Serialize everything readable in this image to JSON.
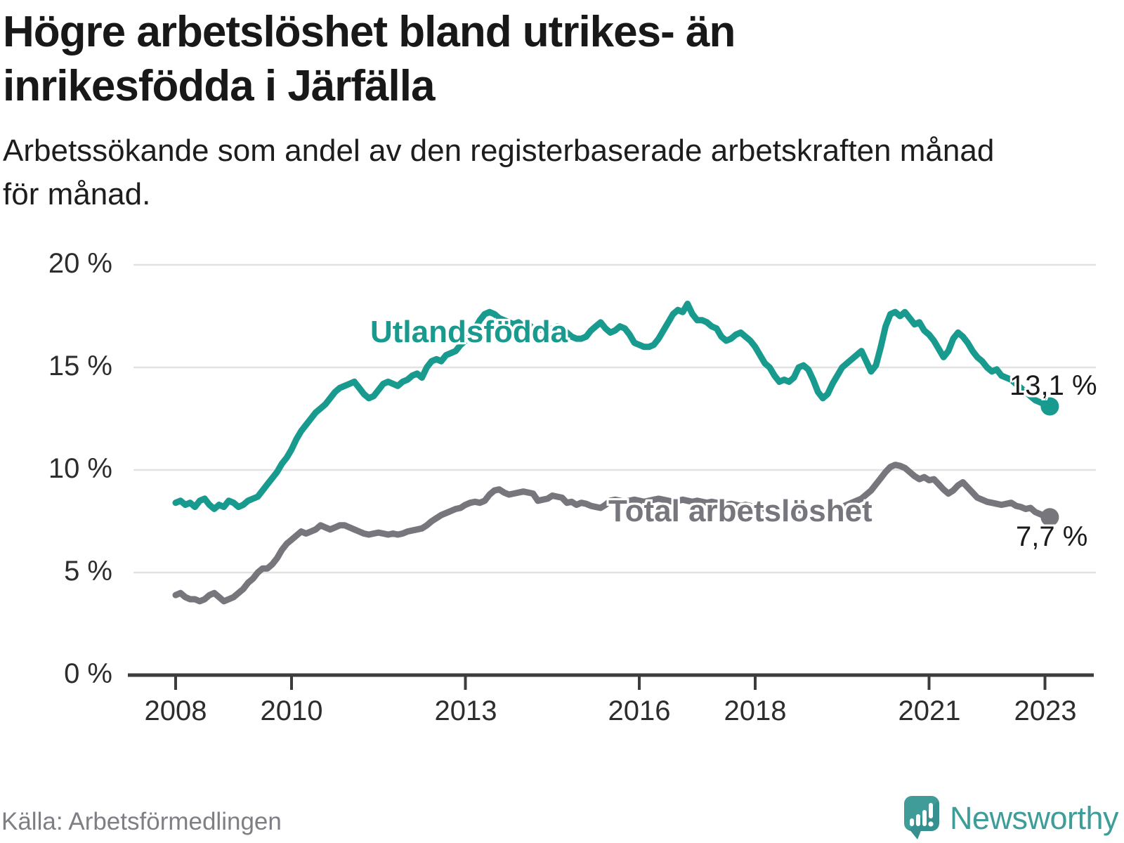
{
  "header": {
    "title_line1": "Högre arbetslöshet bland utrikes- än",
    "title_line2": "inrikesfödda i Järfälla",
    "subtitle_line1": "Arbetssökande som andel av den registerbaserade arbetskraften månad",
    "subtitle_line2": "för månad."
  },
  "footer": {
    "source": "Källa: Arbetsförmedlingen",
    "brand": "Newsworthy",
    "brand_color": "#3f9d99"
  },
  "chart_data": {
    "type": "line",
    "title": "Högre arbetslöshet bland utrikes- än inrikesfödda i Järfälla",
    "subtitle": "Arbetssökande som andel av den registerbaserade arbetskraften månad för månad.",
    "unit": "%",
    "grid": "horizontal",
    "legend_position": "inline-labels",
    "axis_color": "#3c3c3c",
    "gridline_color": "#e2e2e2",
    "y_axis": {
      "range": [
        0,
        20
      ],
      "ticks": [
        {
          "value": 20,
          "label": "20 %"
        },
        {
          "value": 15,
          "label": "15 %"
        },
        {
          "value": 10,
          "label": "10 %"
        },
        {
          "value": 5,
          "label": "5 %"
        },
        {
          "value": 0,
          "label": "0 %"
        }
      ]
    },
    "x_axis": {
      "range_years": [
        2008.0,
        2023.17
      ],
      "ticks": [
        {
          "value": 2008,
          "label": "2008"
        },
        {
          "value": 2010,
          "label": "2010"
        },
        {
          "value": 2013,
          "label": "2013"
        },
        {
          "value": 2016,
          "label": "2016"
        },
        {
          "value": 2018,
          "label": "2018"
        },
        {
          "value": 2021,
          "label": "2021"
        },
        {
          "value": 2023,
          "label": "2023"
        }
      ]
    },
    "series": [
      {
        "id": "utlandsfodda",
        "name": "Utlandsfödda",
        "color": "#189b8e",
        "start_year": 2008,
        "step_months": 1,
        "end_value": 13.1,
        "end_label": "13,1 %",
        "values": [
          8.4,
          8.5,
          8.3,
          8.4,
          8.2,
          8.5,
          8.6,
          8.3,
          8.1,
          8.3,
          8.2,
          8.5,
          8.4,
          8.2,
          8.3,
          8.5,
          8.6,
          8.7,
          9.0,
          9.3,
          9.6,
          9.9,
          10.3,
          10.6,
          11.0,
          11.5,
          11.9,
          12.2,
          12.5,
          12.8,
          13.0,
          13.2,
          13.5,
          13.8,
          14.0,
          14.1,
          14.2,
          14.3,
          14.0,
          13.7,
          13.5,
          13.6,
          13.9,
          14.2,
          14.3,
          14.2,
          14.1,
          14.3,
          14.4,
          14.6,
          14.7,
          14.5,
          15.0,
          15.3,
          15.4,
          15.3,
          15.6,
          15.7,
          15.8,
          16.1,
          16.3,
          16.6,
          16.9,
          17.3,
          17.6,
          17.7,
          17.6,
          17.4,
          17.3,
          17.2,
          17.1,
          17.2,
          17.0,
          17.1,
          16.9,
          16.8,
          16.9,
          16.8,
          16.9,
          17.0,
          16.9,
          16.7,
          16.5,
          16.4,
          16.4,
          16.5,
          16.8,
          17.0,
          17.2,
          16.9,
          16.7,
          16.8,
          17.0,
          16.9,
          16.6,
          16.2,
          16.1,
          16.0,
          16.0,
          16.1,
          16.4,
          16.8,
          17.2,
          17.6,
          17.8,
          17.7,
          18.1,
          17.6,
          17.3,
          17.3,
          17.2,
          17.0,
          16.9,
          16.5,
          16.3,
          16.4,
          16.6,
          16.7,
          16.5,
          16.3,
          16.0,
          15.6,
          15.2,
          15.0,
          14.6,
          14.3,
          14.4,
          14.3,
          14.5,
          15.0,
          15.1,
          14.9,
          14.4,
          13.8,
          13.5,
          13.7,
          14.2,
          14.6,
          15.0,
          15.2,
          15.4,
          15.6,
          15.8,
          15.3,
          14.8,
          15.1,
          16.0,
          17.0,
          17.6,
          17.7,
          17.5,
          17.7,
          17.4,
          17.1,
          17.2,
          16.8,
          16.6,
          16.3,
          15.9,
          15.5,
          15.8,
          16.4,
          16.7,
          16.5,
          16.2,
          15.8,
          15.5,
          15.3,
          15.0,
          14.8,
          14.9,
          14.6,
          14.5,
          14.4,
          14.2,
          14.0,
          13.8,
          13.6,
          13.4,
          13.3,
          13.2,
          13.1
        ]
      },
      {
        "id": "total",
        "name": "Total arbetslöshet",
        "color": "#77767c",
        "start_year": 2008,
        "step_months": 1,
        "end_value": 7.7,
        "end_label": "7,7 %",
        "values": [
          3.9,
          4.0,
          3.8,
          3.7,
          3.7,
          3.6,
          3.7,
          3.9,
          4.0,
          3.8,
          3.6,
          3.7,
          3.8,
          4.0,
          4.2,
          4.5,
          4.7,
          5.0,
          5.2,
          5.2,
          5.4,
          5.7,
          6.1,
          6.4,
          6.6,
          6.8,
          7.0,
          6.9,
          7.0,
          7.1,
          7.3,
          7.2,
          7.1,
          7.2,
          7.3,
          7.3,
          7.2,
          7.1,
          7.0,
          6.9,
          6.85,
          6.9,
          6.95,
          6.9,
          6.85,
          6.9,
          6.85,
          6.9,
          7.0,
          7.05,
          7.1,
          7.15,
          7.3,
          7.5,
          7.65,
          7.8,
          7.9,
          8.0,
          8.1,
          8.15,
          8.3,
          8.4,
          8.45,
          8.4,
          8.5,
          8.8,
          9.0,
          9.05,
          8.9,
          8.8,
          8.85,
          8.9,
          8.95,
          8.9,
          8.85,
          8.5,
          8.55,
          8.6,
          8.75,
          8.7,
          8.65,
          8.4,
          8.45,
          8.3,
          8.4,
          8.35,
          8.25,
          8.2,
          8.15,
          8.3,
          8.5,
          8.55,
          8.5,
          8.45,
          8.5,
          8.55,
          8.5,
          8.45,
          8.5,
          8.55,
          8.6,
          8.55,
          8.5,
          8.45,
          8.5,
          8.55,
          8.5,
          8.45,
          8.5,
          8.45,
          8.4,
          8.45,
          8.4,
          8.35,
          8.3,
          8.35,
          8.3,
          8.25,
          8.3,
          8.25,
          8.2,
          8.15,
          8.1,
          8.05,
          8.0,
          7.95,
          8.0,
          7.95,
          8.0,
          8.05,
          8.0,
          8.05,
          8.0,
          8.05,
          8.1,
          8.05,
          8.1,
          8.15,
          8.2,
          8.3,
          8.4,
          8.5,
          8.6,
          8.8,
          9.0,
          9.3,
          9.6,
          9.9,
          10.15,
          10.25,
          10.2,
          10.1,
          9.9,
          9.7,
          9.55,
          9.65,
          9.5,
          9.55,
          9.3,
          9.05,
          8.85,
          9.0,
          9.25,
          9.4,
          9.15,
          8.9,
          8.65,
          8.55,
          8.45,
          8.4,
          8.35,
          8.3,
          8.35,
          8.4,
          8.25,
          8.2,
          8.1,
          8.15,
          7.95,
          7.85,
          7.75,
          7.7
        ]
      }
    ]
  }
}
